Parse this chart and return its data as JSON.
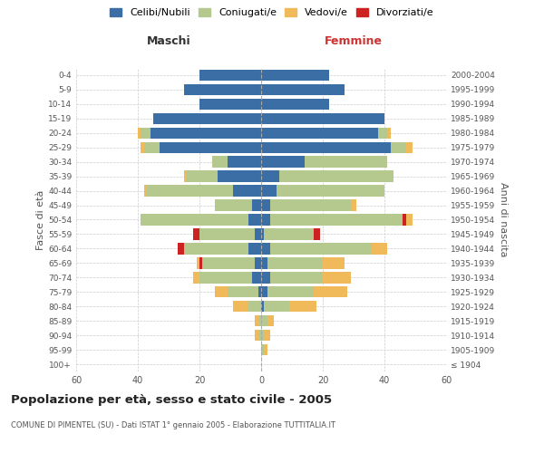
{
  "age_groups": [
    "100+",
    "95-99",
    "90-94",
    "85-89",
    "80-84",
    "75-79",
    "70-74",
    "65-69",
    "60-64",
    "55-59",
    "50-54",
    "45-49",
    "40-44",
    "35-39",
    "30-34",
    "25-29",
    "20-24",
    "15-19",
    "10-14",
    "5-9",
    "0-4"
  ],
  "birth_years": [
    "≤ 1904",
    "1905-1909",
    "1910-1914",
    "1915-1919",
    "1920-1924",
    "1925-1929",
    "1930-1934",
    "1935-1939",
    "1940-1944",
    "1945-1949",
    "1950-1954",
    "1955-1959",
    "1960-1964",
    "1965-1969",
    "1970-1974",
    "1975-1979",
    "1980-1984",
    "1985-1989",
    "1990-1994",
    "1995-1999",
    "2000-2004"
  ],
  "colors": {
    "celibi": "#3a6ea5",
    "coniugati": "#b5c98e",
    "vedovi": "#f0b95a",
    "divorziati": "#cc2222"
  },
  "maschi": {
    "celibi": [
      0,
      0,
      0,
      0,
      0,
      1,
      3,
      2,
      4,
      2,
      4,
      3,
      9,
      14,
      11,
      33,
      36,
      35,
      20,
      25,
      20
    ],
    "coniugati": [
      0,
      0,
      1,
      1,
      4,
      10,
      17,
      17,
      21,
      18,
      35,
      12,
      28,
      10,
      5,
      5,
      3,
      0,
      0,
      0,
      0
    ],
    "vedovi": [
      0,
      0,
      1,
      1,
      5,
      4,
      2,
      1,
      0,
      0,
      0,
      0,
      1,
      1,
      0,
      1,
      1,
      0,
      0,
      0,
      0
    ],
    "divorziati": [
      0,
      0,
      0,
      0,
      0,
      0,
      0,
      1,
      2,
      2,
      0,
      0,
      0,
      0,
      0,
      0,
      0,
      0,
      0,
      0,
      0
    ]
  },
  "femmine": {
    "celibi": [
      0,
      0,
      0,
      0,
      1,
      2,
      3,
      2,
      3,
      1,
      3,
      3,
      5,
      6,
      14,
      42,
      38,
      40,
      22,
      27,
      22
    ],
    "coniugati": [
      0,
      1,
      1,
      2,
      8,
      15,
      17,
      18,
      33,
      16,
      43,
      26,
      35,
      37,
      27,
      5,
      3,
      0,
      0,
      0,
      0
    ],
    "vedovi": [
      0,
      1,
      2,
      2,
      9,
      11,
      9,
      7,
      5,
      0,
      2,
      2,
      0,
      0,
      0,
      2,
      1,
      0,
      0,
      0,
      0
    ],
    "divorziati": [
      0,
      0,
      0,
      0,
      0,
      0,
      0,
      0,
      0,
      2,
      1,
      0,
      0,
      0,
      0,
      0,
      0,
      0,
      0,
      0,
      0
    ]
  },
  "xlim": 60,
  "title": "Popolazione per età, sesso e stato civile - 2005",
  "subtitle": "COMUNE DI PIMENTEL (SU) - Dati ISTAT 1° gennaio 2005 - Elaborazione TUTTITALIA.IT",
  "ylabel_left": "Fasce di età",
  "ylabel_right": "Anni di nascita",
  "xlabel_left": "Maschi",
  "xlabel_right": "Femmine",
  "legend_labels": [
    "Celibi/Nubili",
    "Coniugati/e",
    "Vedovi/e",
    "Divorziati/e"
  ],
  "background_color": "#ffffff",
  "grid_color": "#cccccc"
}
